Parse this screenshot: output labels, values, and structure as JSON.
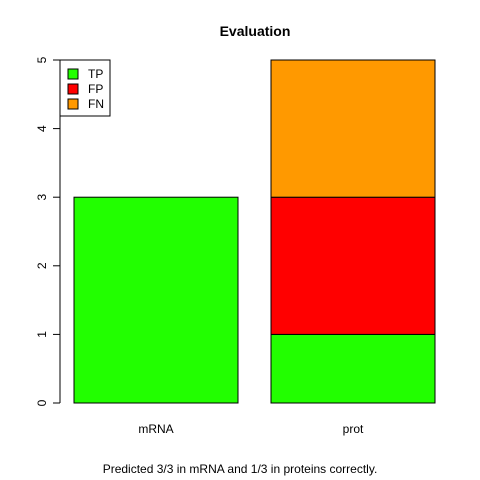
{
  "chart_data": {
    "type": "bar",
    "stacked": true,
    "title": "Evaluation",
    "categories": [
      "mRNA",
      "prot"
    ],
    "series": [
      {
        "name": "TP",
        "color": "#22ff00",
        "values": [
          3,
          1
        ]
      },
      {
        "name": "FP",
        "color": "#ff0000",
        "values": [
          0,
          2
        ]
      },
      {
        "name": "FN",
        "color": "#ff9900",
        "values": [
          0,
          2
        ]
      }
    ],
    "ylim": [
      0,
      5
    ],
    "yticks": [
      "0",
      "1",
      "2",
      "3",
      "4",
      "5"
    ],
    "legend": "top-left",
    "grid": false
  },
  "caption": "Predicted 3/3 in mRNA and 1/3 in proteins correctly."
}
